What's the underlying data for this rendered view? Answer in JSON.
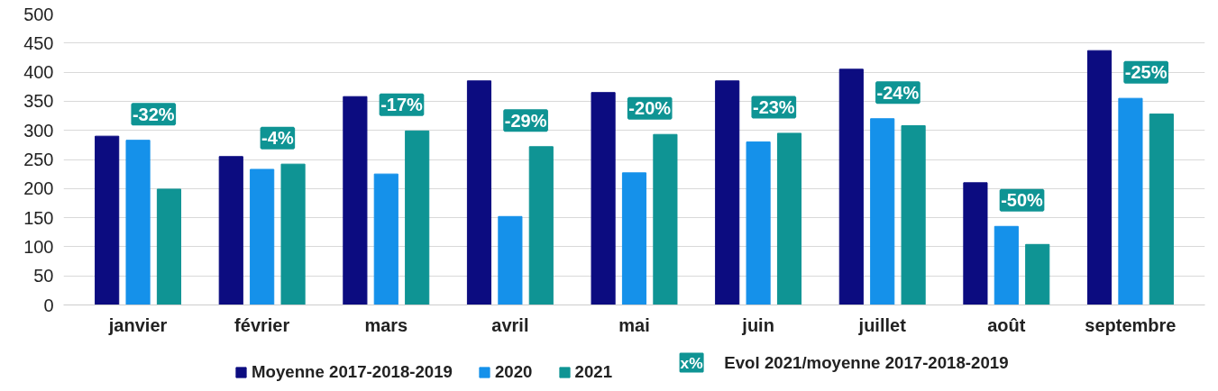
{
  "chart_data": {
    "type": "bar",
    "categories": [
      "janvier",
      "février",
      "mars",
      "avril",
      "mai",
      "juin",
      "juillet",
      "août",
      "septembre"
    ],
    "series": [
      {
        "name": "Moyenne 2017-2018-2019",
        "color": "#0c0c80",
        "values": [
          290,
          255,
          358,
          385,
          365,
          385,
          405,
          210,
          437
        ]
      },
      {
        "name": "2020",
        "color": "#1591ea",
        "values": [
          283,
          233,
          225,
          152,
          227,
          280,
          320,
          135,
          355
        ]
      },
      {
        "name": "2021",
        "color": "#0f9494",
        "values": [
          199,
          242,
          299,
          272,
          293,
          295,
          308,
          104,
          328
        ]
      }
    ],
    "ylim": [
      0,
      500
    ],
    "yticks": [
      0,
      50,
      100,
      150,
      200,
      250,
      300,
      350,
      400,
      450,
      500
    ],
    "grid": "y",
    "legend": "bottom",
    "annotations": [
      "-32%",
      "-4%",
      "-17%",
      "-29%",
      "-20%",
      "-23%",
      "-24%",
      "-50%",
      "-25%",
      "x%",
      "Evol 2021/moyenne 2017-2018-2019"
    ]
  }
}
